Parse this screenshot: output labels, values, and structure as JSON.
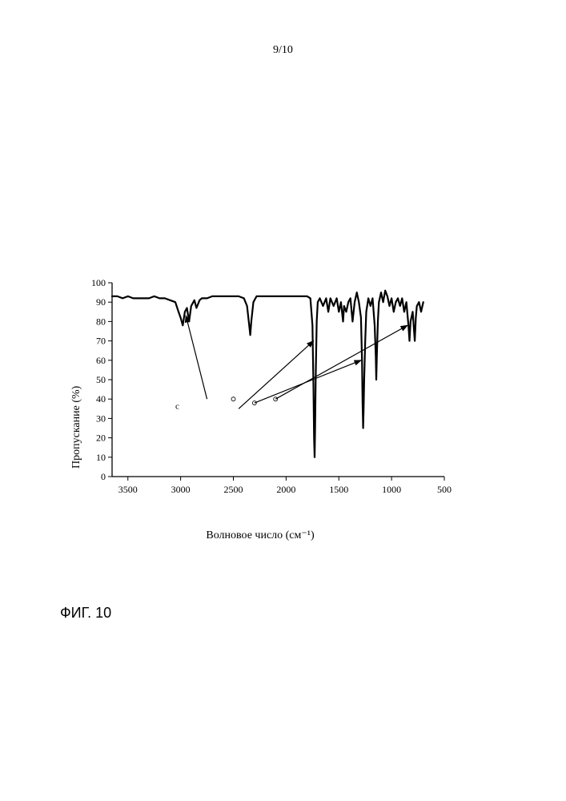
{
  "page_number": "9/10",
  "figure_caption": "ФИГ. 10",
  "ir_chart": {
    "type": "line",
    "ylabel": "Пропускание (%)",
    "xlabel": "Волновое число (см⁻¹)",
    "xlim": [
      3650,
      500
    ],
    "ylim": [
      0,
      100
    ],
    "xticks": [
      3500,
      3000,
      2500,
      2000,
      1500,
      1000,
      500
    ],
    "yticks": [
      0,
      10,
      20,
      30,
      40,
      50,
      60,
      70,
      80,
      90,
      100
    ],
    "line_color": "#000000",
    "line_width": 2.2,
    "background_color": "#ffffff",
    "axis_color": "#000000",
    "tick_fontsize": 12,
    "label_fontsize": 14,
    "data": [
      [
        3650,
        93
      ],
      [
        3600,
        93
      ],
      [
        3550,
        92
      ],
      [
        3500,
        93
      ],
      [
        3450,
        92
      ],
      [
        3400,
        92
      ],
      [
        3350,
        92
      ],
      [
        3300,
        92
      ],
      [
        3250,
        93
      ],
      [
        3200,
        92
      ],
      [
        3150,
        92
      ],
      [
        3100,
        91
      ],
      [
        3050,
        90
      ],
      [
        3020,
        85
      ],
      [
        3000,
        82
      ],
      [
        2980,
        78
      ],
      [
        2960,
        85
      ],
      [
        2940,
        87
      ],
      [
        2920,
        80
      ],
      [
        2900,
        88
      ],
      [
        2870,
        91
      ],
      [
        2850,
        87
      ],
      [
        2820,
        91
      ],
      [
        2800,
        92
      ],
      [
        2750,
        92
      ],
      [
        2700,
        93
      ],
      [
        2650,
        93
      ],
      [
        2600,
        93
      ],
      [
        2550,
        93
      ],
      [
        2500,
        93
      ],
      [
        2450,
        93
      ],
      [
        2400,
        92
      ],
      [
        2370,
        88
      ],
      [
        2350,
        78
      ],
      [
        2340,
        73
      ],
      [
        2330,
        80
      ],
      [
        2310,
        90
      ],
      [
        2280,
        93
      ],
      [
        2250,
        93
      ],
      [
        2200,
        93
      ],
      [
        2150,
        93
      ],
      [
        2100,
        93
      ],
      [
        2050,
        93
      ],
      [
        2000,
        93
      ],
      [
        1950,
        93
      ],
      [
        1900,
        93
      ],
      [
        1850,
        93
      ],
      [
        1800,
        93
      ],
      [
        1770,
        92
      ],
      [
        1750,
        78
      ],
      [
        1740,
        45
      ],
      [
        1735,
        20
      ],
      [
        1730,
        10
      ],
      [
        1725,
        25
      ],
      [
        1720,
        50
      ],
      [
        1710,
        80
      ],
      [
        1700,
        90
      ],
      [
        1680,
        92
      ],
      [
        1650,
        88
      ],
      [
        1620,
        92
      ],
      [
        1600,
        85
      ],
      [
        1580,
        92
      ],
      [
        1550,
        88
      ],
      [
        1520,
        92
      ],
      [
        1500,
        85
      ],
      [
        1480,
        90
      ],
      [
        1460,
        80
      ],
      [
        1450,
        88
      ],
      [
        1430,
        85
      ],
      [
        1410,
        90
      ],
      [
        1390,
        92
      ],
      [
        1370,
        80
      ],
      [
        1350,
        90
      ],
      [
        1330,
        95
      ],
      [
        1310,
        90
      ],
      [
        1290,
        82
      ],
      [
        1280,
        60
      ],
      [
        1275,
        38
      ],
      [
        1270,
        25
      ],
      [
        1265,
        35
      ],
      [
        1260,
        50
      ],
      [
        1250,
        70
      ],
      [
        1240,
        85
      ],
      [
        1220,
        92
      ],
      [
        1200,
        88
      ],
      [
        1180,
        92
      ],
      [
        1160,
        78
      ],
      [
        1150,
        62
      ],
      [
        1145,
        50
      ],
      [
        1140,
        62
      ],
      [
        1130,
        80
      ],
      [
        1120,
        90
      ],
      [
        1100,
        95
      ],
      [
        1080,
        90
      ],
      [
        1060,
        96
      ],
      [
        1040,
        93
      ],
      [
        1020,
        88
      ],
      [
        1000,
        92
      ],
      [
        980,
        85
      ],
      [
        960,
        90
      ],
      [
        940,
        92
      ],
      [
        920,
        88
      ],
      [
        900,
        92
      ],
      [
        880,
        85
      ],
      [
        860,
        90
      ],
      [
        840,
        78
      ],
      [
        830,
        70
      ],
      [
        820,
        80
      ],
      [
        800,
        85
      ],
      [
        780,
        70
      ],
      [
        770,
        82
      ],
      [
        760,
        88
      ],
      [
        740,
        90
      ],
      [
        720,
        85
      ],
      [
        700,
        90
      ]
    ],
    "annotations": [
      {
        "type": "arrow",
        "from": [
          2750,
          40
        ],
        "to": [
          2950,
          83
        ],
        "color": "#000000"
      },
      {
        "type": "arrow",
        "from": [
          2450,
          35
        ],
        "to": [
          1740,
          70
        ],
        "color": "#000000"
      },
      {
        "type": "arrow",
        "from": [
          2300,
          38
        ],
        "to": [
          1290,
          60
        ],
        "color": "#000000"
      },
      {
        "type": "arrow",
        "from": [
          2100,
          40
        ],
        "to": [
          850,
          78
        ],
        "color": "#000000"
      },
      {
        "type": "label",
        "text": "c",
        "at": [
          3050,
          35
        ],
        "fontsize": 11
      },
      {
        "type": "circle",
        "at": [
          2500,
          40
        ],
        "r": 2.5
      },
      {
        "type": "circle",
        "at": [
          2300,
          38
        ],
        "r": 2.5
      },
      {
        "type": "circle",
        "at": [
          2100,
          40
        ],
        "r": 2.5
      }
    ]
  }
}
